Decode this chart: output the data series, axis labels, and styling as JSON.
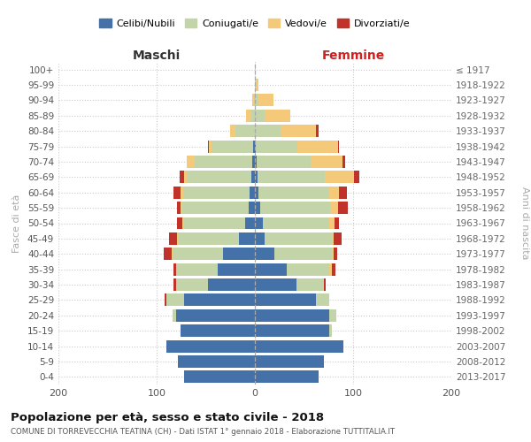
{
  "age_groups": [
    "0-4",
    "5-9",
    "10-14",
    "15-19",
    "20-24",
    "25-29",
    "30-34",
    "35-39",
    "40-44",
    "45-49",
    "50-54",
    "55-59",
    "60-64",
    "65-69",
    "70-74",
    "75-79",
    "80-84",
    "85-89",
    "90-94",
    "95-99",
    "100+"
  ],
  "birth_years": [
    "2013-2017",
    "2008-2012",
    "2003-2007",
    "1998-2002",
    "1993-1997",
    "1988-1992",
    "1983-1987",
    "1978-1982",
    "1973-1977",
    "1968-1972",
    "1963-1967",
    "1958-1962",
    "1953-1957",
    "1948-1952",
    "1943-1947",
    "1938-1942",
    "1933-1937",
    "1928-1932",
    "1923-1927",
    "1918-1922",
    "≤ 1917"
  ],
  "maschi": {
    "celibi": [
      72,
      78,
      90,
      76,
      80,
      72,
      48,
      38,
      32,
      16,
      10,
      6,
      5,
      4,
      3,
      2,
      0,
      0,
      0,
      0,
      0
    ],
    "coniugati": [
      0,
      0,
      0,
      0,
      4,
      18,
      32,
      42,
      52,
      62,
      62,
      68,
      68,
      65,
      58,
      42,
      20,
      4,
      1,
      0,
      0
    ],
    "vedovi": [
      0,
      0,
      0,
      0,
      0,
      0,
      0,
      0,
      1,
      1,
      2,
      2,
      3,
      3,
      8,
      3,
      5,
      5,
      2,
      0,
      0
    ],
    "divorziati": [
      0,
      0,
      0,
      0,
      0,
      2,
      3,
      3,
      8,
      8,
      5,
      3,
      7,
      5,
      0,
      1,
      0,
      0,
      0,
      0,
      0
    ]
  },
  "femmine": {
    "nubili": [
      65,
      70,
      90,
      76,
      76,
      62,
      42,
      32,
      20,
      10,
      8,
      5,
      4,
      3,
      2,
      1,
      0,
      0,
      0,
      0,
      0
    ],
    "coniugate": [
      0,
      0,
      0,
      2,
      7,
      14,
      28,
      44,
      58,
      68,
      68,
      72,
      72,
      68,
      55,
      42,
      26,
      10,
      4,
      1,
      0
    ],
    "vedove": [
      0,
      0,
      0,
      0,
      0,
      0,
      0,
      2,
      2,
      2,
      5,
      8,
      10,
      30,
      32,
      42,
      36,
      26,
      15,
      3,
      0
    ],
    "divorziate": [
      0,
      0,
      0,
      0,
      0,
      0,
      2,
      4,
      4,
      8,
      5,
      10,
      8,
      5,
      3,
      1,
      3,
      0,
      0,
      0,
      0
    ]
  },
  "colors": {
    "celibi": "#4472a8",
    "coniugati": "#c2d4a8",
    "vedovi": "#f5c97a",
    "divorziati": "#c0322a"
  },
  "xlim": 200,
  "title": "Popolazione per età, sesso e stato civile - 2018",
  "subtitle": "COMUNE DI TORREVECCHIA TEATINA (CH) - Dati ISTAT 1° gennaio 2018 - Elaborazione TUTTITALIA.IT",
  "ylabel_left": "Fasce di età",
  "ylabel_right": "Anni di nascita",
  "xlabel_left": "Maschi",
  "xlabel_right": "Femmine",
  "bg_color": "#ffffff",
  "grid_color": "#cccccc"
}
